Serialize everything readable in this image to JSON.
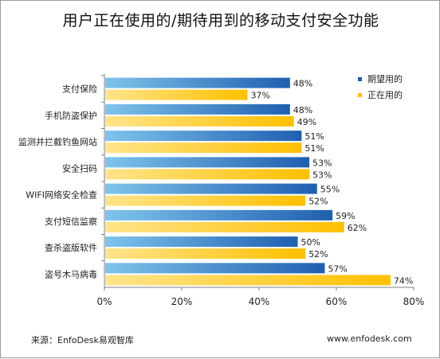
{
  "title": "用户正在使用的/期待用到的移动支付安全功能",
  "footer": {
    "source": "来源：EnfoDesk易观智库",
    "website": "www.enfodesk.com"
  },
  "chart_data": {
    "type": "bar",
    "orientation": "horizontal",
    "title": "用户正在使用的/期待用到的移动支付安全功能",
    "categories": [
      "支付保险",
      "手机防盗保护",
      "监测并拦截钓鱼网站",
      "安全扫码",
      "WIFI网络安全检查",
      "支付短信监察",
      "查杀盗版软件",
      "盗号木马病毒"
    ],
    "series": [
      {
        "name": "期望用的",
        "color": "#1f5fb0",
        "values": [
          48,
          48,
          51,
          53,
          55,
          59,
          50,
          57
        ]
      },
      {
        "name": "正在用的",
        "color": "#ffc000",
        "values": [
          37,
          49,
          51,
          53,
          52,
          62,
          52,
          74
        ]
      }
    ],
    "xlim": [
      0,
      80
    ],
    "xticks": [
      0,
      20,
      40,
      60,
      80
    ],
    "xtick_labels": [
      "0%",
      "20%",
      "40%",
      "60%",
      "80%"
    ],
    "value_suffix": "%",
    "legend_position": "right",
    "grid": false
  }
}
